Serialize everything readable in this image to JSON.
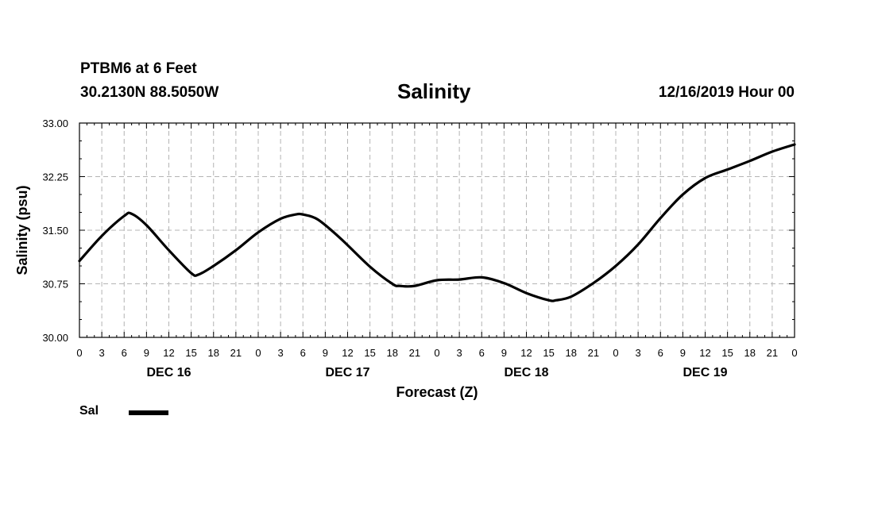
{
  "header": {
    "station": "PTBM6 at 6 Feet",
    "coords": "30.2130N 88.5050W",
    "title": "Salinity",
    "run": "12/16/2019 Hour 00"
  },
  "legend": {
    "label": "Sal",
    "color": "#000000"
  },
  "chart_data": {
    "type": "line",
    "title": "Salinity",
    "xlabel": "Forecast (Z)",
    "ylabel": "Salinity (psu)",
    "xlim": [
      0,
      96
    ],
    "ylim": [
      30.0,
      33.0
    ],
    "yticks": [
      "30.00",
      "30.75",
      "31.50",
      "32.25",
      "33.00"
    ],
    "xtick_labels": [
      "0",
      "3",
      "6",
      "9",
      "12",
      "15",
      "18",
      "21",
      "0",
      "3",
      "6",
      "9",
      "12",
      "15",
      "18",
      "21",
      "0",
      "3",
      "6",
      "9",
      "12",
      "15",
      "18",
      "21",
      "0",
      "3",
      "6",
      "9",
      "12",
      "15",
      "18",
      "21",
      "0"
    ],
    "day_labels": [
      "DEC 16",
      "DEC 17",
      "DEC 18",
      "DEC 19"
    ],
    "grid": true,
    "series": [
      {
        "name": "Sal",
        "x": [
          0,
          3,
          6,
          7,
          9,
          12,
          15,
          16,
          18,
          21,
          24,
          27,
          29,
          30,
          32,
          35,
          39,
          42,
          43,
          45,
          48,
          51,
          54,
          57,
          60,
          63,
          64,
          66,
          69,
          72,
          75,
          78,
          81,
          84,
          87,
          90,
          93,
          96
        ],
        "y": [
          31.07,
          31.42,
          31.7,
          31.73,
          31.57,
          31.22,
          30.9,
          30.88,
          31.0,
          31.22,
          31.47,
          31.66,
          31.72,
          31.72,
          31.65,
          31.39,
          30.99,
          30.75,
          30.72,
          30.72,
          30.8,
          30.81,
          30.84,
          30.76,
          30.62,
          30.52,
          30.52,
          30.57,
          30.76,
          31.0,
          31.3,
          31.67,
          32.0,
          32.23,
          32.35,
          32.47,
          32.6,
          32.7
        ]
      }
    ]
  }
}
